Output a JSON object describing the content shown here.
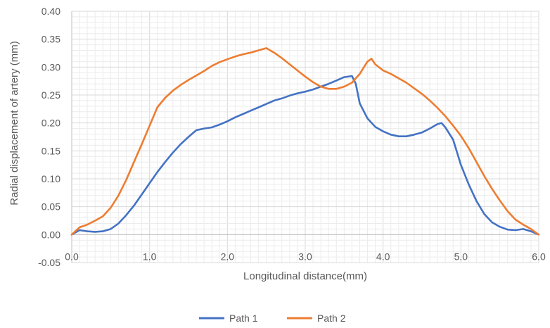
{
  "chart_data": {
    "type": "line",
    "title": "",
    "xlabel": "Longitudinal distance(mm)",
    "ylabel": "Radial displacement of artery (mm)",
    "xlim": [
      0,
      6
    ],
    "ylim": [
      -0.05,
      0.4
    ],
    "x_ticks": [
      "0.0",
      "1.0",
      "2.0",
      "3.0",
      "4.0",
      "5.0",
      "6.0"
    ],
    "y_ticks": [
      "-0.05",
      "0.00",
      "0.05",
      "0.10",
      "0.15",
      "0.20",
      "0.25",
      "0.30",
      "0.35",
      "0.40"
    ],
    "grid": true,
    "legend_position": "bottom",
    "series": [
      {
        "name": "Path 1",
        "color": "#4472c4",
        "points": [
          [
            0.0,
            0.0
          ],
          [
            0.1,
            0.008
          ],
          [
            0.2,
            0.006
          ],
          [
            0.3,
            0.005
          ],
          [
            0.4,
            0.006
          ],
          [
            0.5,
            0.01
          ],
          [
            0.6,
            0.02
          ],
          [
            0.7,
            0.035
          ],
          [
            0.8,
            0.052
          ],
          [
            0.9,
            0.072
          ],
          [
            1.0,
            0.092
          ],
          [
            1.1,
            0.112
          ],
          [
            1.2,
            0.13
          ],
          [
            1.3,
            0.147
          ],
          [
            1.4,
            0.162
          ],
          [
            1.5,
            0.175
          ],
          [
            1.6,
            0.187
          ],
          [
            1.7,
            0.19
          ],
          [
            1.8,
            0.192
          ],
          [
            1.9,
            0.197
          ],
          [
            2.0,
            0.203
          ],
          [
            2.1,
            0.21
          ],
          [
            2.2,
            0.216
          ],
          [
            2.3,
            0.222
          ],
          [
            2.4,
            0.228
          ],
          [
            2.5,
            0.234
          ],
          [
            2.6,
            0.24
          ],
          [
            2.7,
            0.244
          ],
          [
            2.8,
            0.249
          ],
          [
            2.9,
            0.253
          ],
          [
            3.0,
            0.256
          ],
          [
            3.1,
            0.26
          ],
          [
            3.2,
            0.265
          ],
          [
            3.3,
            0.27
          ],
          [
            3.4,
            0.276
          ],
          [
            3.5,
            0.282
          ],
          [
            3.6,
            0.284
          ],
          [
            3.65,
            0.27
          ],
          [
            3.7,
            0.235
          ],
          [
            3.8,
            0.208
          ],
          [
            3.9,
            0.193
          ],
          [
            4.0,
            0.185
          ],
          [
            4.1,
            0.179
          ],
          [
            4.2,
            0.176
          ],
          [
            4.3,
            0.176
          ],
          [
            4.4,
            0.179
          ],
          [
            4.5,
            0.183
          ],
          [
            4.6,
            0.19
          ],
          [
            4.7,
            0.198
          ],
          [
            4.75,
            0.2
          ],
          [
            4.8,
            0.192
          ],
          [
            4.9,
            0.17
          ],
          [
            5.0,
            0.125
          ],
          [
            5.1,
            0.09
          ],
          [
            5.2,
            0.06
          ],
          [
            5.3,
            0.037
          ],
          [
            5.4,
            0.022
          ],
          [
            5.5,
            0.014
          ],
          [
            5.6,
            0.009
          ],
          [
            5.7,
            0.008
          ],
          [
            5.8,
            0.01
          ],
          [
            5.9,
            0.006
          ],
          [
            6.0,
            0.0
          ]
        ]
      },
      {
        "name": "Path 2",
        "color": "#ed7d31",
        "points": [
          [
            0.0,
            0.0
          ],
          [
            0.1,
            0.013
          ],
          [
            0.2,
            0.018
          ],
          [
            0.3,
            0.025
          ],
          [
            0.4,
            0.033
          ],
          [
            0.5,
            0.048
          ],
          [
            0.6,
            0.07
          ],
          [
            0.7,
            0.098
          ],
          [
            0.8,
            0.13
          ],
          [
            0.9,
            0.162
          ],
          [
            1.0,
            0.195
          ],
          [
            1.1,
            0.228
          ],
          [
            1.2,
            0.245
          ],
          [
            1.3,
            0.258
          ],
          [
            1.4,
            0.268
          ],
          [
            1.5,
            0.277
          ],
          [
            1.6,
            0.285
          ],
          [
            1.7,
            0.293
          ],
          [
            1.8,
            0.302
          ],
          [
            1.9,
            0.309
          ],
          [
            2.0,
            0.314
          ],
          [
            2.1,
            0.319
          ],
          [
            2.2,
            0.323
          ],
          [
            2.3,
            0.326
          ],
          [
            2.4,
            0.33
          ],
          [
            2.5,
            0.334
          ],
          [
            2.6,
            0.326
          ],
          [
            2.7,
            0.316
          ],
          [
            2.8,
            0.305
          ],
          [
            2.9,
            0.294
          ],
          [
            3.0,
            0.283
          ],
          [
            3.1,
            0.273
          ],
          [
            3.2,
            0.265
          ],
          [
            3.3,
            0.261
          ],
          [
            3.4,
            0.261
          ],
          [
            3.5,
            0.265
          ],
          [
            3.6,
            0.272
          ],
          [
            3.7,
            0.288
          ],
          [
            3.8,
            0.31
          ],
          [
            3.85,
            0.315
          ],
          [
            3.9,
            0.305
          ],
          [
            4.0,
            0.294
          ],
          [
            4.1,
            0.288
          ],
          [
            4.2,
            0.28
          ],
          [
            4.3,
            0.272
          ],
          [
            4.4,
            0.262
          ],
          [
            4.5,
            0.252
          ],
          [
            4.6,
            0.24
          ],
          [
            4.7,
            0.227
          ],
          [
            4.8,
            0.212
          ],
          [
            4.9,
            0.195
          ],
          [
            5.0,
            0.177
          ],
          [
            5.1,
            0.155
          ],
          [
            5.2,
            0.13
          ],
          [
            5.3,
            0.105
          ],
          [
            5.4,
            0.082
          ],
          [
            5.5,
            0.061
          ],
          [
            5.6,
            0.042
          ],
          [
            5.7,
            0.027
          ],
          [
            5.8,
            0.018
          ],
          [
            5.9,
            0.01
          ],
          [
            6.0,
            0.0
          ]
        ]
      }
    ]
  }
}
